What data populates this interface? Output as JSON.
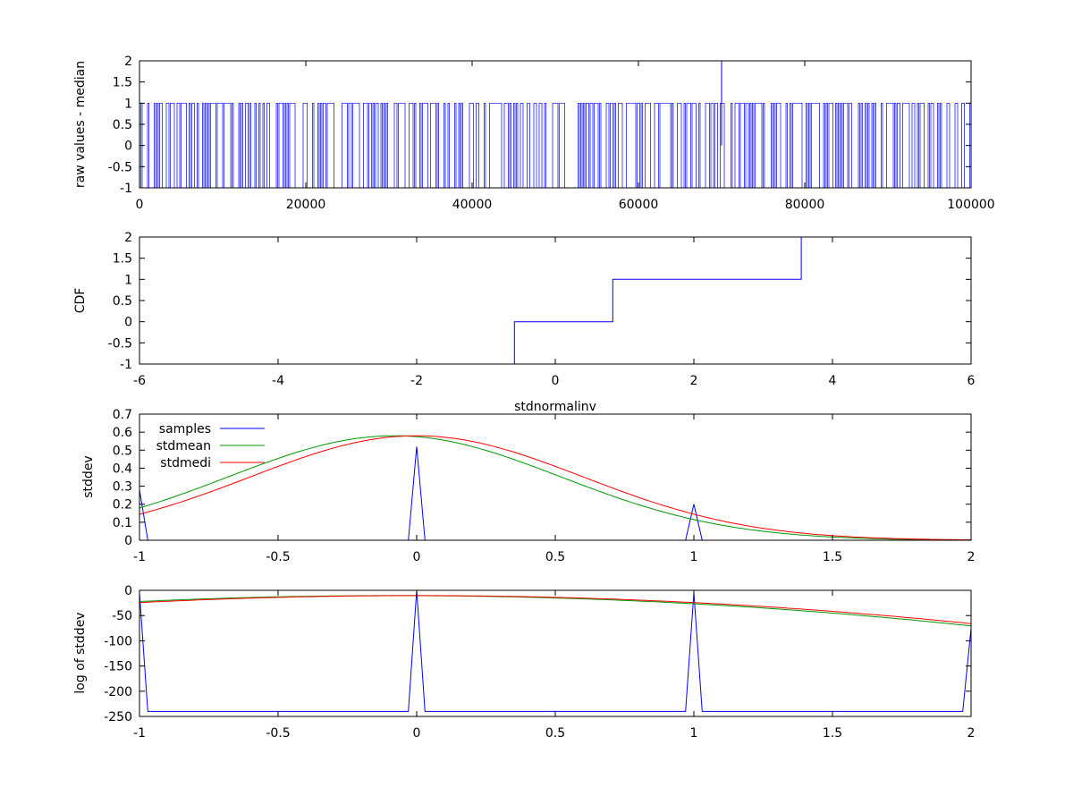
{
  "chart_data": [
    {
      "type": "line",
      "ylabel": "raw values - median",
      "xlabel": "",
      "xlim": [
        0,
        100000
      ],
      "ylim": [
        -1,
        2
      ],
      "xticks": [
        "0",
        "20000",
        "40000",
        "60000",
        "80000",
        "100000"
      ],
      "yticks": [
        "-1",
        "-0.5",
        "0",
        "0.5",
        "1",
        "1.5",
        "2"
      ],
      "grid": false,
      "series": [
        {
          "color": "#0000ff",
          "style": "dense-oscillation",
          "levels": [
            -1,
            0,
            1
          ],
          "spikes": [
            {
              "x": 70000,
              "y": 2
            }
          ]
        }
      ]
    },
    {
      "type": "line",
      "ylabel": "CDF",
      "xlabel": "stdnormalinv",
      "xlim": [
        -6,
        6
      ],
      "ylim": [
        -1,
        2
      ],
      "xticks": [
        "-6",
        "-4",
        "-2",
        "0",
        "2",
        "4",
        "6"
      ],
      "yticks": [
        "-1",
        "-0.5",
        "0",
        "0.5",
        "1",
        "1.5",
        "2"
      ],
      "grid": false,
      "series": [
        {
          "color": "#0000ff",
          "style": "step",
          "x": [
            -3.5,
            -0.59,
            -0.59,
            0.83,
            0.83,
            3.55,
            3.55
          ],
          "y": [
            -1,
            -1,
            0,
            0,
            1,
            1,
            2
          ]
        }
      ]
    },
    {
      "type": "line",
      "ylabel": "stddev",
      "xlabel": "",
      "xlim": [
        -1,
        2
      ],
      "ylim": [
        0,
        0.7
      ],
      "xticks": [
        "-1",
        "-0.5",
        "0",
        "0.5",
        "1",
        "1.5",
        "2"
      ],
      "yticks": [
        "0",
        "0.1",
        "0.2",
        "0.3",
        "0.4",
        "0.5",
        "0.6",
        "0.7"
      ],
      "legend": "top-left",
      "grid": false,
      "series": [
        {
          "name": "samples",
          "color": "#0000ff",
          "x": [
            -1,
            -0.97,
            -0.03,
            0,
            0.03,
            0.97,
            1,
            1.03,
            2
          ],
          "y": [
            0.28,
            0,
            0,
            0.52,
            0,
            0,
            0.2,
            0,
            0
          ]
        },
        {
          "name": "stdmean",
          "color": "#009900",
          "gaussian": {
            "peak": 0.58,
            "center": -0.08,
            "sigma": 0.6
          }
        },
        {
          "name": "stdmedi",
          "color": "#ff0000",
          "gaussian": {
            "peak": 0.58,
            "center": 0.0,
            "sigma": 0.6
          }
        }
      ]
    },
    {
      "type": "line",
      "ylabel": "log of stddev",
      "xlabel": "",
      "xlim": [
        -1,
        2
      ],
      "ylim": [
        -250,
        0
      ],
      "xticks": [
        "-1",
        "-0.5",
        "0",
        "0.5",
        "1",
        "1.5",
        "2"
      ],
      "yticks": [
        "-250",
        "-200",
        "-150",
        "-100",
        "-50",
        "0"
      ],
      "grid": false,
      "series": [
        {
          "color": "#0000ff",
          "x": [
            -1,
            -0.97,
            -0.03,
            0,
            0.03,
            0.97,
            1,
            1.03,
            1.97,
            2
          ],
          "y": [
            -5,
            -240,
            -240,
            0,
            -240,
            -240,
            -5,
            -240,
            -240,
            -75
          ]
        },
        {
          "color": "#009900",
          "gaussian_log": {
            "peak": 0.58,
            "center": -0.08,
            "sigma": 0.6
          }
        },
        {
          "color": "#ff0000",
          "gaussian_log": {
            "peak": 0.58,
            "center": 0.0,
            "sigma": 0.6
          }
        }
      ]
    }
  ]
}
